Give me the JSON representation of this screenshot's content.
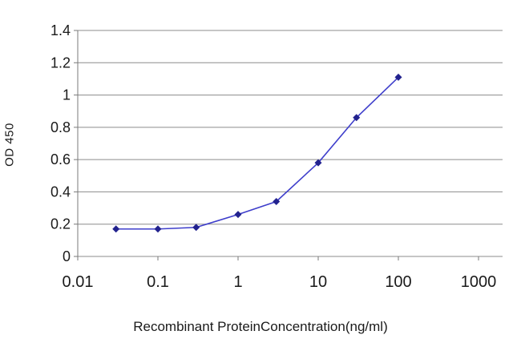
{
  "chart_data": {
    "type": "line",
    "title": "",
    "xlabel": "Recombinant ProteinConcentration(ng/ml)",
    "ylabel": "OD 450",
    "x_scale": "log",
    "xlim": [
      0.01,
      1000
    ],
    "ylim": [
      0,
      1.4
    ],
    "x_ticks": [
      0.01,
      0.1,
      1,
      10,
      100,
      1000
    ],
    "y_ticks": [
      0,
      0.2,
      0.4,
      0.6,
      0.8,
      1,
      1.2,
      1.4
    ],
    "grid": "horizontal",
    "legend": "none",
    "x": [
      0.03,
      0.1,
      0.3,
      1,
      3,
      10,
      30,
      100
    ],
    "series": [
      {
        "name": "OD 450",
        "values": [
          0.17,
          0.17,
          0.18,
          0.26,
          0.34,
          0.58,
          0.86,
          1.11
        ]
      }
    ],
    "line_color": "#3e3ecb",
    "marker_color": "#22228e",
    "grid_color": "#8c8c8c",
    "axis_color": "#7a7a7a",
    "text_color": "#1a1a1a"
  }
}
